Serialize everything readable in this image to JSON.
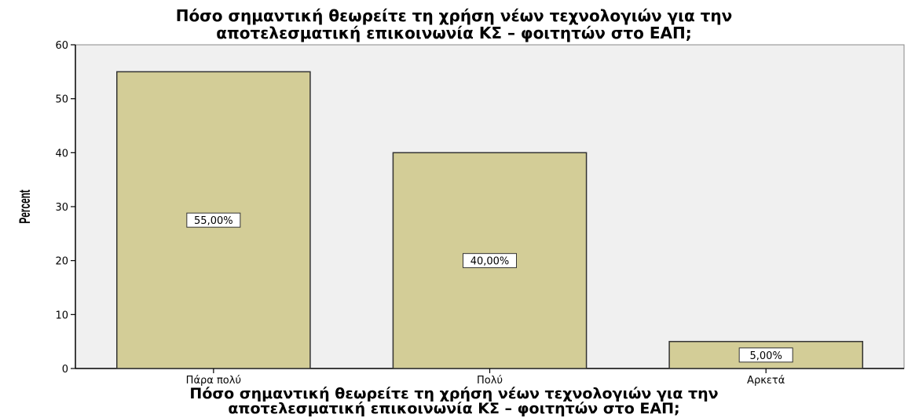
{
  "chart_data": {
    "type": "bar",
    "title_lines": [
      "Πόσο σημαντική θεωρείτε τη χρήση νέων τεχνολογιών για την",
      "αποτελεσματική επικοινωνία ΚΣ – φοιτητών στο ΕΑΠ;"
    ],
    "xlabel_lines": [
      "Πόσο σημαντική θεωρείτε τη χρήση νέων τεχνολογιών για την",
      "αποτελεσματική επικοινωνία ΚΣ – φοιτητών στο ΕΑΠ;"
    ],
    "ylabel": "Percent",
    "categories": [
      "Πάρα πολύ",
      "Πολύ",
      "Αρκετά"
    ],
    "values": [
      55,
      40,
      5
    ],
    "data_labels": [
      "55,00%",
      "40,00%",
      "5,00%"
    ],
    "ylim": [
      0,
      60
    ],
    "yticks": [
      0,
      10,
      20,
      30,
      40,
      50,
      60
    ],
    "grid": false,
    "legend": "none",
    "colors": {
      "bar_fill": "#d3cd97",
      "bar_stroke": "#333333",
      "plot_background": "#f0f0f0"
    }
  }
}
